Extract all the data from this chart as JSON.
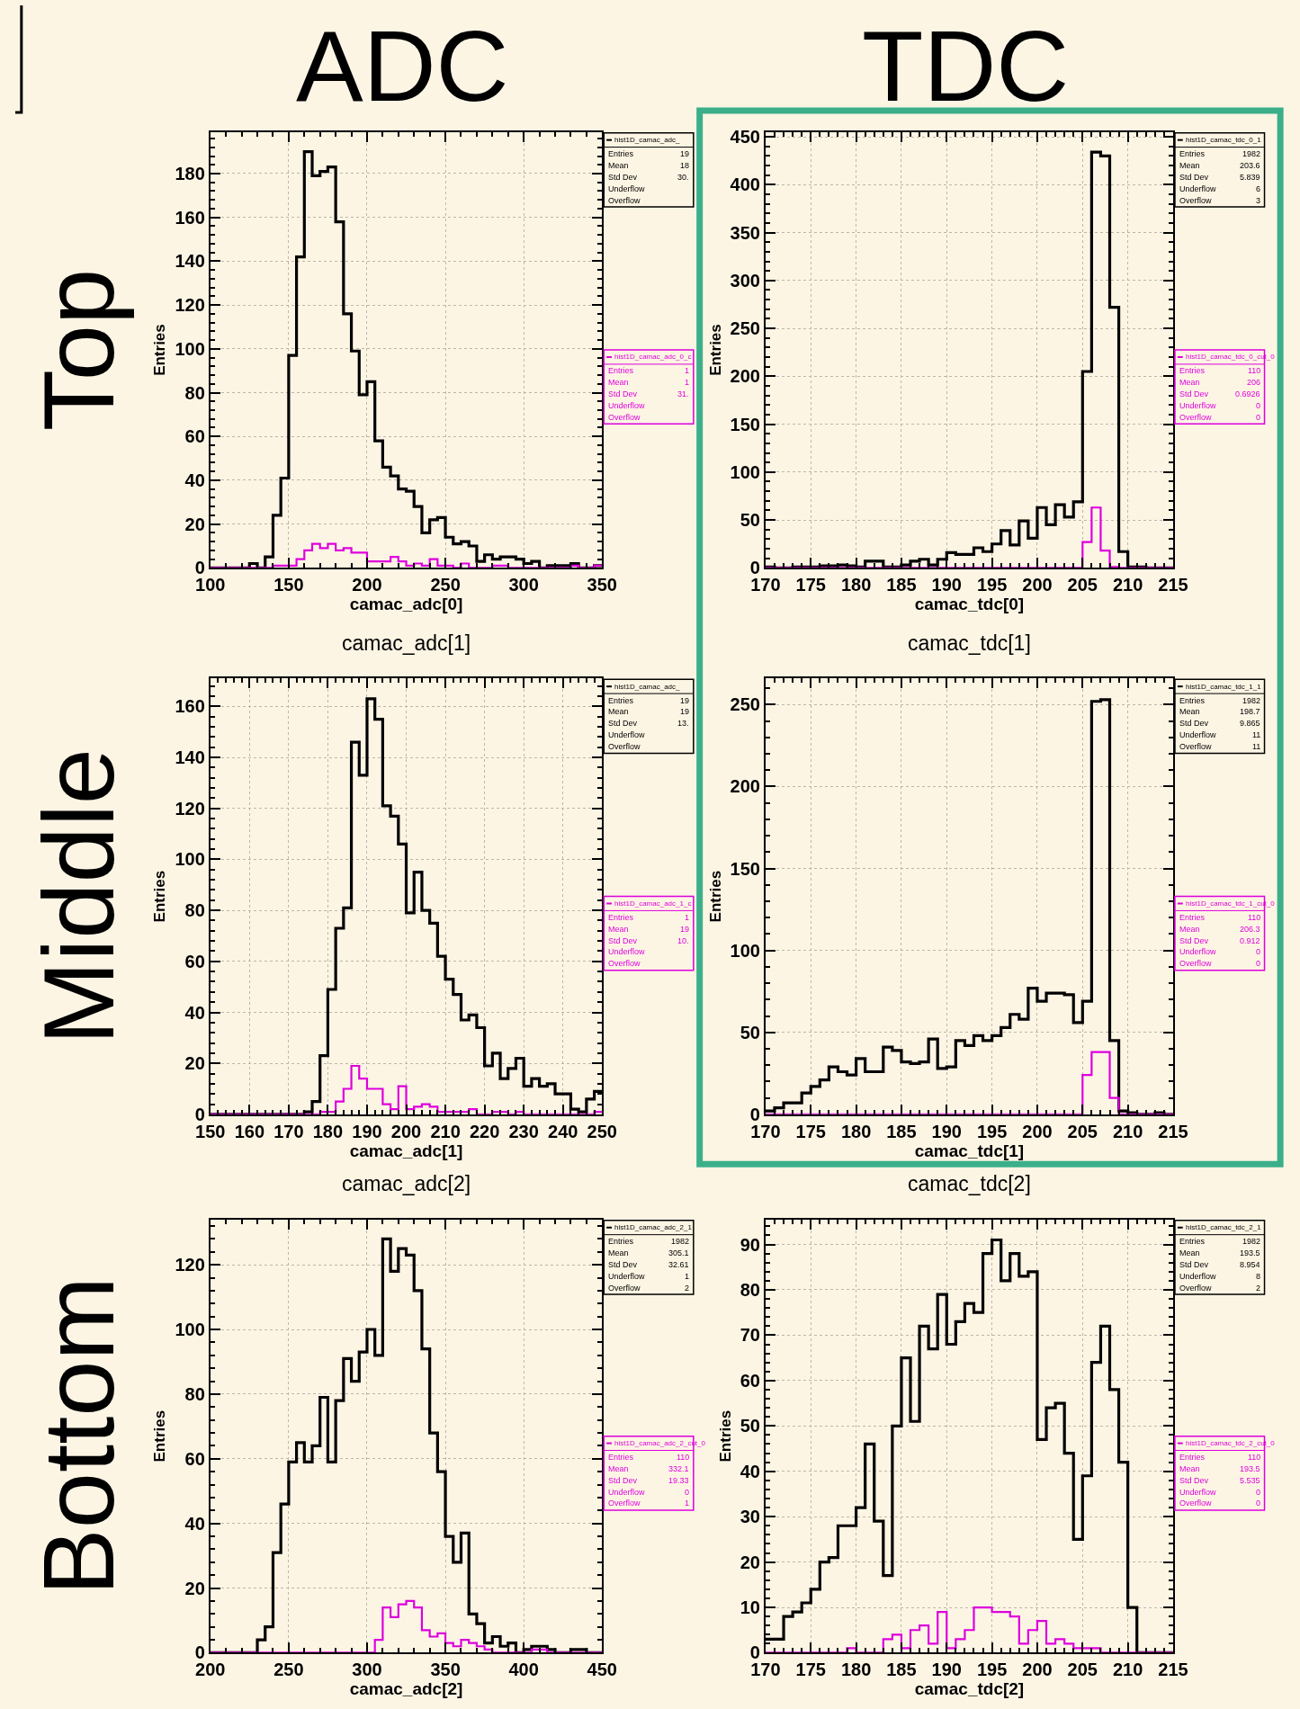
{
  "chart_data": [
    {
      "type": "histogram",
      "xlabel": "camac_adc[0]",
      "ylabel": "Entries",
      "grid": true,
      "legend": "right",
      "bins": [
        100,
        105,
        110,
        115,
        120,
        125,
        130,
        135,
        140,
        145,
        150,
        155,
        160,
        165,
        170,
        175,
        180,
        185,
        190,
        195,
        200,
        205,
        210,
        215,
        220,
        225,
        230,
        235,
        240,
        245,
        250,
        255,
        260,
        265,
        270,
        275,
        280,
        285,
        290,
        295,
        300,
        305,
        310,
        315,
        320,
        325,
        330,
        335,
        340,
        345,
        350
      ],
      "series": [
        {
          "name": "hist1D_camac_adc_",
          "color": "#000000",
          "values": [
            0,
            0,
            0,
            0,
            0,
            2,
            0,
            5,
            24,
            41,
            97,
            142,
            190,
            179,
            181,
            183,
            158,
            116,
            99,
            79,
            85,
            58,
            46,
            42,
            36,
            35,
            28,
            16,
            22,
            23,
            14,
            11,
            12,
            10,
            3,
            6,
            4,
            5,
            5,
            4,
            2,
            3,
            0,
            1,
            1,
            1,
            2,
            0,
            0,
            1
          ]
        },
        {
          "name": "hist1D_camac_adc_0_c",
          "color": "#dd00dd",
          "values": [
            0,
            0,
            0,
            0,
            0,
            0,
            0,
            0,
            1,
            1,
            1,
            4,
            8,
            11,
            9,
            11,
            8,
            9,
            7,
            7,
            3,
            3,
            3,
            5,
            3,
            1,
            2,
            1,
            4,
            1,
            1,
            0,
            2,
            0,
            0,
            0,
            1,
            1,
            0,
            0,
            0,
            0,
            0,
            0,
            0,
            0,
            1,
            0,
            0,
            1
          ]
        }
      ],
      "xlim": [
        100,
        350
      ],
      "xticks": [
        100,
        150,
        200,
        250,
        300,
        350
      ],
      "ylim": [
        0,
        199
      ],
      "yticks": [
        0,
        20,
        40,
        60,
        80,
        100,
        120,
        140,
        160,
        180
      ],
      "annotations": [
        "Entries 19",
        "Mean 18",
        "Std Dev 30.",
        "Underflow",
        "Overflow",
        "Entries 1",
        "Mean 1",
        "Std Dev 31.",
        "Underflow",
        "Overflow",
        "ADC",
        "Top"
      ]
    },
    {
      "type": "histogram",
      "xlabel": "camac_tdc[0]",
      "ylabel": "Entries",
      "grid": true,
      "legend": "right",
      "bins": [
        170,
        171,
        172,
        173,
        174,
        175,
        176,
        177,
        178,
        179,
        180,
        181,
        182,
        183,
        184,
        185,
        186,
        187,
        188,
        189,
        190,
        191,
        192,
        193,
        194,
        195,
        196,
        197,
        198,
        199,
        200,
        201,
        202,
        203,
        204,
        205,
        206,
        207,
        208,
        209,
        210,
        211,
        212,
        213,
        214,
        215
      ],
      "series": [
        {
          "name": "hist1D_camac_tdc_0_1",
          "color": "#000000",
          "values": [
            1,
            0,
            0,
            1,
            1,
            1,
            2,
            2,
            3,
            2,
            1,
            7,
            7,
            1,
            1,
            3,
            7,
            9,
            3,
            9,
            16,
            14,
            14,
            21,
            17,
            25,
            39,
            24,
            49,
            31,
            63,
            45,
            66,
            53,
            69,
            205,
            434,
            430,
            272,
            17,
            1,
            1,
            0,
            0,
            0
          ]
        },
        {
          "name": "hist1D_camac_tdc_0_cut_0",
          "color": "#dd00dd",
          "values": [
            0,
            0,
            0,
            0,
            0,
            0,
            0,
            0,
            0,
            0,
            0,
            0,
            0,
            0,
            0,
            0,
            0,
            0,
            0,
            0,
            0,
            0,
            0,
            0,
            0,
            0,
            0,
            0,
            0,
            0,
            0,
            0,
            0,
            0,
            0,
            27,
            63,
            18,
            1,
            0,
            0,
            0,
            0,
            0,
            0
          ]
        }
      ],
      "xlim": [
        170,
        215
      ],
      "xticks": [
        170,
        175,
        180,
        185,
        190,
        195,
        200,
        205,
        210,
        215
      ],
      "ylim": [
        0,
        455
      ],
      "yticks": [
        0,
        50,
        100,
        150,
        200,
        250,
        300,
        350,
        400,
        450
      ],
      "annotations": [
        "Entries 1982",
        "Mean 203.6",
        "Std Dev 5.839",
        "Underflow 6",
        "Overflow 3",
        "Entries 110",
        "Mean 206",
        "Std Dev 0.6926",
        "Underflow 0",
        "Overflow 0",
        "TDC"
      ]
    },
    {
      "type": "histogram",
      "title": "camac_adc[1]",
      "xlabel": "camac_adc[1]",
      "ylabel": "Entries",
      "grid": true,
      "legend": "right",
      "bins": [
        150,
        152,
        154,
        156,
        158,
        160,
        162,
        164,
        166,
        168,
        170,
        172,
        174,
        176,
        178,
        180,
        182,
        184,
        186,
        188,
        190,
        192,
        194,
        196,
        198,
        200,
        202,
        204,
        206,
        208,
        210,
        212,
        214,
        216,
        218,
        220,
        222,
        224,
        226,
        228,
        230,
        232,
        234,
        236,
        238,
        240,
        242,
        244,
        246,
        248,
        250
      ],
      "series": [
        {
          "name": "hist1D_camac_adc_",
          "color": "#000000",
          "values": [
            0,
            0,
            0,
            0,
            0,
            0,
            0,
            0,
            0,
            0,
            0,
            0,
            1,
            5,
            23,
            49,
            73,
            81,
            146,
            133,
            163,
            155,
            121,
            117,
            106,
            79,
            95,
            80,
            75,
            62,
            53,
            47,
            37,
            39,
            34,
            19,
            24,
            14,
            18,
            22,
            11,
            14,
            11,
            12,
            8,
            8,
            2,
            1,
            6,
            9
          ]
        },
        {
          "name": "hist1D_camac_adc_1_c",
          "color": "#dd00dd",
          "values": [
            0,
            0,
            0,
            0,
            0,
            0,
            0,
            0,
            0,
            0,
            0,
            0,
            0,
            0,
            1,
            1,
            5,
            10,
            19,
            14,
            10,
            10,
            4,
            2,
            11,
            2,
            3,
            4,
            3,
            1,
            1,
            1,
            1,
            2,
            0,
            0,
            1,
            1,
            0,
            1,
            0,
            0,
            0,
            0,
            0,
            0,
            0,
            0,
            0,
            1
          ]
        }
      ],
      "xlim": [
        150,
        250
      ],
      "xticks": [
        150,
        160,
        170,
        180,
        190,
        200,
        210,
        220,
        230,
        240,
        250
      ],
      "ylim": [
        0,
        171
      ],
      "yticks": [
        0,
        20,
        40,
        60,
        80,
        100,
        120,
        140,
        160
      ],
      "annotations": [
        "Entries 19",
        "Mean 19",
        "Std Dev 13.",
        "Underflow",
        "Overflow",
        "Entries 1",
        "Mean 19",
        "Std Dev 10.",
        "Underflow",
        "Overflow",
        "Middle"
      ]
    },
    {
      "type": "histogram",
      "title": "camac_tdc[1]",
      "xlabel": "camac_tdc[1]",
      "ylabel": "Entries",
      "grid": true,
      "legend": "right",
      "bins": [
        170,
        171,
        172,
        173,
        174,
        175,
        176,
        177,
        178,
        179,
        180,
        181,
        182,
        183,
        184,
        185,
        186,
        187,
        188,
        189,
        190,
        191,
        192,
        193,
        194,
        195,
        196,
        197,
        198,
        199,
        200,
        201,
        202,
        203,
        204,
        205,
        206,
        207,
        208,
        209,
        210,
        211,
        212,
        213,
        214,
        215
      ],
      "series": [
        {
          "name": "hist1D_camac_tdc_1_1",
          "color": "#000000",
          "values": [
            2,
            4,
            7,
            7,
            13,
            17,
            21,
            29,
            26,
            24,
            34,
            26,
            26,
            41,
            39,
            32,
            31,
            32,
            46,
            28,
            29,
            45,
            42,
            48,
            45,
            48,
            53,
            61,
            58,
            77,
            69,
            74,
            74,
            73,
            56,
            69,
            252,
            253,
            45,
            2,
            1,
            0,
            0,
            1,
            0
          ]
        },
        {
          "name": "hist1D_camac_tdc_1_cut_0",
          "color": "#dd00dd",
          "values": [
            0,
            0,
            0,
            0,
            0,
            0,
            0,
            0,
            0,
            0,
            0,
            0,
            0,
            0,
            0,
            0,
            0,
            0,
            0,
            0,
            0,
            0,
            0,
            0,
            0,
            0,
            0,
            0,
            0,
            0,
            0,
            0,
            0,
            0,
            0,
            24,
            38,
            38,
            10,
            0,
            0,
            0,
            0,
            0,
            0
          ]
        }
      ],
      "xlim": [
        170,
        215
      ],
      "xticks": [
        170,
        175,
        180,
        185,
        190,
        195,
        200,
        205,
        210,
        215
      ],
      "ylim": [
        0,
        266
      ],
      "yticks": [
        0,
        50,
        100,
        150,
        200,
        250
      ],
      "annotations": [
        "Entries 1982",
        "Mean 198.7",
        "Std Dev 9.865",
        "Underflow 11",
        "Overflow 11",
        "Entries 110",
        "Mean 206.3",
        "Std Dev 0.912",
        "Underflow 0",
        "Overflow 0"
      ]
    },
    {
      "type": "histogram",
      "title": "camac_adc[2]",
      "xlabel": "camac_adc[2]",
      "ylabel": "Entries",
      "grid": true,
      "legend": "right",
      "bins": [
        200,
        205,
        210,
        215,
        220,
        225,
        230,
        235,
        240,
        245,
        250,
        255,
        260,
        265,
        270,
        275,
        280,
        285,
        290,
        295,
        300,
        305,
        310,
        315,
        320,
        325,
        330,
        335,
        340,
        345,
        350,
        355,
        360,
        365,
        370,
        375,
        380,
        385,
        390,
        395,
        400,
        405,
        410,
        415,
        420,
        425,
        430,
        435,
        440,
        445,
        450
      ],
      "series": [
        {
          "name": "hist1D_camac_adc_2_1",
          "color": "#000000",
          "values": [
            0,
            0,
            0,
            0,
            0,
            0,
            4,
            8,
            31,
            46,
            59,
            65,
            59,
            64,
            79,
            59,
            78,
            91,
            84,
            93,
            100,
            92,
            128,
            118,
            125,
            123,
            112,
            94,
            68,
            56,
            36,
            28,
            37,
            12,
            9,
            3,
            5,
            2,
            3,
            0,
            1,
            2,
            2,
            1,
            0,
            0,
            1,
            1,
            0,
            0
          ]
        },
        {
          "name": "hist1D_camac_adc_2_cut_0",
          "color": "#dd00dd",
          "values": [
            0,
            0,
            0,
            0,
            0,
            0,
            0,
            0,
            0,
            0,
            0,
            0,
            0,
            0,
            0,
            0,
            0,
            0,
            0,
            0,
            0,
            4,
            14,
            11,
            15,
            16,
            14,
            7,
            5,
            6,
            3,
            2,
            4,
            3,
            2,
            1,
            0,
            0,
            0,
            0,
            0,
            1,
            1,
            0,
            0,
            0,
            0,
            0,
            0,
            0
          ]
        }
      ],
      "xlim": [
        200,
        450
      ],
      "xticks": [
        200,
        250,
        300,
        350,
        400,
        450
      ],
      "ylim": [
        0,
        134
      ],
      "yticks": [
        0,
        20,
        40,
        60,
        80,
        100,
        120
      ],
      "annotations": [
        "Entries 1982",
        "Mean 305.1",
        "Std Dev 32.61",
        "Underflow 1",
        "Overflow 2",
        "Entries 110",
        "Mean 332.1",
        "Std Dev 19.33",
        "Underflow 0",
        "Overflow 1",
        "Bottom"
      ]
    },
    {
      "type": "histogram",
      "title": "camac_tdc[2]",
      "xlabel": "camac_tdc[2]",
      "ylabel": "Entries",
      "grid": true,
      "legend": "right",
      "bins": [
        170,
        171,
        172,
        173,
        174,
        175,
        176,
        177,
        178,
        179,
        180,
        181,
        182,
        183,
        184,
        185,
        186,
        187,
        188,
        189,
        190,
        191,
        192,
        193,
        194,
        195,
        196,
        197,
        198,
        199,
        200,
        201,
        202,
        203,
        204,
        205,
        206,
        207,
        208,
        209,
        210,
        211,
        212,
        213,
        214,
        215
      ],
      "series": [
        {
          "name": "hist1D_camac_tdc_2_1",
          "color": "#000000",
          "values": [
            3,
            3,
            8,
            9,
            11,
            14,
            20,
            21,
            28,
            28,
            32,
            46,
            29,
            17,
            50,
            65,
            51,
            72,
            67,
            79,
            68,
            73,
            77,
            75,
            88,
            91,
            82,
            88,
            83,
            84,
            47,
            54,
            55,
            44,
            25,
            39,
            64,
            72,
            58,
            42,
            10,
            0,
            0,
            0,
            0
          ]
        },
        {
          "name": "hist1D_camac_tdc_2_cut_0",
          "color": "#dd00dd",
          "values": [
            0,
            0,
            0,
            0,
            0,
            0,
            0,
            0,
            0,
            1,
            0,
            0,
            0,
            3,
            4,
            1,
            5,
            6,
            2,
            9,
            1,
            3,
            5,
            10,
            10,
            9,
            9,
            8,
            2,
            5,
            7,
            2,
            3,
            2,
            1,
            1,
            1,
            0,
            0,
            0,
            0,
            0,
            0,
            0,
            0
          ]
        }
      ],
      "xlim": [
        170,
        215
      ],
      "xticks": [
        170,
        175,
        180,
        185,
        190,
        195,
        200,
        205,
        210,
        215
      ],
      "ylim": [
        0,
        95.5
      ],
      "yticks": [
        0,
        10,
        20,
        30,
        40,
        50,
        60,
        70,
        80,
        90
      ],
      "annotations": [
        "Entries 1982",
        "Mean 193.5",
        "Std Dev 8.954",
        "Underflow 8",
        "Overflow 2",
        "Entries 110",
        "Mean 193.5",
        "Std Dev 5.535",
        "Underflow 0",
        "Overflow 0"
      ]
    }
  ]
}
